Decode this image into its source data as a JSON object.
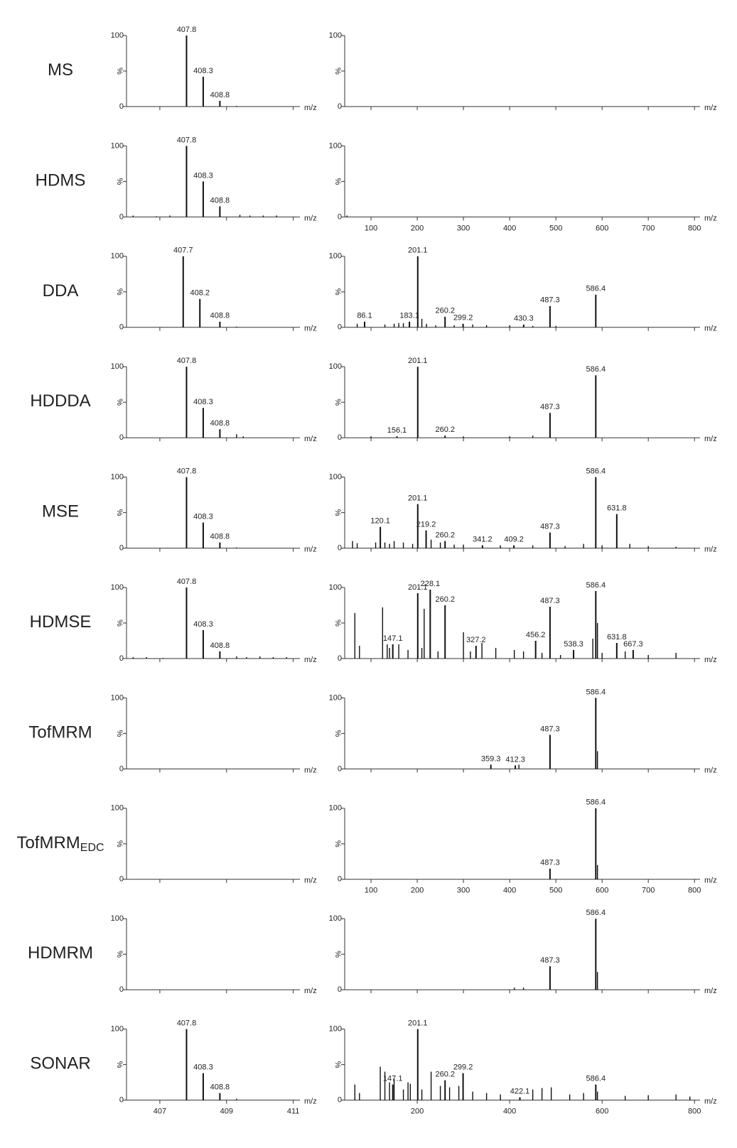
{
  "chart_data": [
    {
      "type": "stick",
      "title": "MS",
      "xlabel": "m/z",
      "color": "#111111",
      "xlim": [
        406,
        411.2
      ],
      "ylim": [
        0,
        100
      ],
      "xticks": [
        407,
        409,
        411
      ],
      "yticks": [
        0,
        {
          "value": 50,
          "label": "%"
        },
        100
      ],
      "xtick_labels": false,
      "x": [
        407.8,
        408.3,
        408.8
      ],
      "values": [
        100,
        42,
        8
      ],
      "minor_x": [
        409.3
      ],
      "minor_values": [
        1
      ]
    },
    {
      "type": "stick",
      "xlabel": "m/z",
      "color": "#111111",
      "xlim": [
        43,
        812
      ],
      "ylim": [
        0,
        100
      ],
      "xticks": [
        100,
        200,
        300,
        400,
        500,
        600,
        700,
        800
      ],
      "yticks": [
        0,
        {
          "value": 50,
          "label": "%"
        },
        100
      ],
      "xtick_labels": false,
      "x": [],
      "values": [],
      "minor_x": [],
      "minor_values": []
    },
    {
      "type": "stick",
      "title": "HDMS",
      "xlabel": "m/z",
      "color": "#111111",
      "xlim": [
        406,
        411.2
      ],
      "ylim": [
        0,
        100
      ],
      "xticks": [
        407,
        409,
        411
      ],
      "yticks": [
        0,
        {
          "value": 50,
          "label": "%"
        },
        100
      ],
      "xtick_labels": false,
      "x": [
        407.8,
        408.3,
        408.8
      ],
      "values": [
        100,
        50,
        15
      ],
      "minor_x": [
        406.2,
        406.9,
        407.3,
        409.4,
        409.7,
        410.1,
        410.5
      ],
      "minor_values": [
        2,
        1,
        2,
        3,
        2,
        2,
        2
      ]
    },
    {
      "type": "stick",
      "xlabel": "m/z",
      "color": "#111111",
      "xlim": [
        43,
        812
      ],
      "ylim": [
        0,
        100
      ],
      "xticks": [
        100,
        200,
        300,
        400,
        500,
        600,
        700,
        800
      ],
      "yticks": [
        0,
        {
          "value": 50,
          "label": "%"
        },
        100
      ],
      "xtick_labels": true,
      "x": [],
      "values": [],
      "minor_x": [
        48
      ],
      "minor_values": [
        2
      ]
    },
    {
      "type": "stick",
      "title": "DDA",
      "xlabel": "m/z",
      "color": "#111111",
      "xlim": [
        406,
        411.2
      ],
      "ylim": [
        0,
        100
      ],
      "xticks": [
        407,
        409,
        411
      ],
      "yticks": [
        0,
        {
          "value": 50,
          "label": "%"
        },
        100
      ],
      "xtick_labels": false,
      "x": [
        407.7,
        408.2,
        408.8
      ],
      "values": [
        100,
        40,
        8
      ],
      "minor_x": [
        409.3
      ],
      "minor_values": [
        1
      ]
    },
    {
      "type": "stick",
      "xlabel": "m/z",
      "color": "#111111",
      "xlim": [
        43,
        812
      ],
      "ylim": [
        0,
        100
      ],
      "xticks": [
        100,
        200,
        300,
        400,
        500,
        600,
        700,
        800
      ],
      "yticks": [
        0,
        {
          "value": 50,
          "label": "%"
        },
        100
      ],
      "xtick_labels": false,
      "x": [
        86.1,
        183.1,
        201.1,
        260.2,
        299.2,
        430.3,
        487.3,
        586.4
      ],
      "values": [
        8,
        8,
        100,
        15,
        5,
        4,
        30,
        46
      ],
      "minor_x": [
        70,
        130,
        150,
        160,
        170,
        210,
        220,
        240,
        280,
        320,
        350,
        400,
        450,
        500
      ],
      "minor_values": [
        5,
        4,
        5,
        6,
        6,
        12,
        5,
        3,
        3,
        4,
        3,
        3,
        2,
        2
      ]
    },
    {
      "type": "stick",
      "title": "HDDDA",
      "xlabel": "m/z",
      "color": "#111111",
      "xlim": [
        406,
        411.2
      ],
      "ylim": [
        0,
        100
      ],
      "xticks": [
        407,
        409,
        411
      ],
      "yticks": [
        0,
        {
          "value": 50,
          "label": "%"
        },
        100
      ],
      "xtick_labels": false,
      "x": [
        407.8,
        408.3,
        408.8
      ],
      "values": [
        100,
        42,
        12
      ],
      "minor_x": [
        409.3,
        409.5
      ],
      "minor_values": [
        5,
        2
      ]
    },
    {
      "type": "stick",
      "xlabel": "m/z",
      "color": "#111111",
      "xlim": [
        43,
        812
      ],
      "ylim": [
        0,
        100
      ],
      "xticks": [
        100,
        200,
        300,
        400,
        500,
        600,
        700,
        800
      ],
      "yticks": [
        0,
        {
          "value": 50,
          "label": "%"
        },
        100
      ],
      "xtick_labels": false,
      "x": [
        156.1,
        201.1,
        260.2,
        487.3,
        586.4
      ],
      "values": [
        2,
        100,
        3,
        35,
        88
      ],
      "minor_x": [
        100,
        300,
        400,
        450
      ],
      "minor_values": [
        2,
        2,
        2,
        3
      ]
    },
    {
      "type": "stick",
      "title": "MSE",
      "xlabel": "m/z",
      "color": "#111111",
      "xlim": [
        406,
        411.2
      ],
      "ylim": [
        0,
        100
      ],
      "xticks": [
        407,
        409,
        411
      ],
      "yticks": [
        0,
        {
          "value": 50,
          "label": "%"
        },
        100
      ],
      "xtick_labels": false,
      "x": [
        407.8,
        408.3,
        408.8
      ],
      "values": [
        100,
        36,
        8
      ],
      "minor_x": [
        409.3
      ],
      "minor_values": [
        1
      ]
    },
    {
      "type": "stick",
      "xlabel": "m/z",
      "color": "#111111",
      "xlim": [
        43,
        812
      ],
      "ylim": [
        0,
        100
      ],
      "xticks": [
        100,
        200,
        300,
        400,
        500,
        600,
        700,
        800
      ],
      "yticks": [
        0,
        {
          "value": 50,
          "label": "%"
        },
        100
      ],
      "xtick_labels": false,
      "x": [
        120.1,
        201.1,
        219.2,
        260.2,
        341.2,
        409.2,
        487.3,
        586.4,
        631.8
      ],
      "values": [
        30,
        62,
        25,
        10,
        4,
        4,
        22,
        100,
        48
      ],
      "minor_x": [
        60,
        70,
        110,
        130,
        140,
        150,
        170,
        190,
        230,
        250,
        280,
        300,
        380,
        450,
        520,
        560,
        600,
        660,
        700,
        760
      ],
      "minor_values": [
        10,
        7,
        8,
        8,
        6,
        10,
        8,
        6,
        12,
        8,
        5,
        5,
        4,
        4,
        3,
        6,
        4,
        6,
        3,
        2
      ]
    },
    {
      "type": "stick",
      "title": "HDMSE",
      "xlabel": "m/z",
      "color": "#111111",
      "xlim": [
        406,
        411.2
      ],
      "ylim": [
        0,
        100
      ],
      "xticks": [
        407,
        409,
        411
      ],
      "yticks": [
        0,
        {
          "value": 50,
          "label": "%"
        },
        100
      ],
      "xtick_labels": false,
      "x": [
        407.8,
        408.3,
        408.8
      ],
      "values": [
        100,
        40,
        10
      ],
      "minor_x": [
        406.2,
        406.6,
        407.1,
        409.3,
        409.6,
        410.0,
        410.4,
        410.8
      ],
      "minor_values": [
        2,
        2,
        1,
        3,
        2,
        3,
        2,
        2
      ]
    },
    {
      "type": "stick",
      "xlabel": "m/z",
      "color": "#111111",
      "xlim": [
        43,
        812
      ],
      "ylim": [
        0,
        100
      ],
      "xticks": [
        100,
        200,
        300,
        400,
        500,
        600,
        700,
        800
      ],
      "yticks": [
        0,
        {
          "value": 50,
          "label": "%"
        },
        100
      ],
      "xtick_labels": false,
      "x": [
        147.1,
        201.1,
        228.1,
        260.2,
        327.2,
        456.2,
        487.3,
        538.3,
        586.4,
        631.8,
        667.3
      ],
      "values": [
        20,
        92,
        97,
        75,
        18,
        25,
        73,
        12,
        95,
        22,
        12
      ],
      "minor_x": [
        65,
        75,
        125,
        135,
        140,
        160,
        180,
        210,
        215,
        245,
        300,
        315,
        340,
        370,
        410,
        430,
        470,
        510,
        580,
        590,
        600,
        650,
        700,
        760
      ],
      "minor_values": [
        64,
        18,
        72,
        20,
        15,
        20,
        12,
        15,
        70,
        10,
        37,
        10,
        22,
        15,
        12,
        10,
        8,
        5,
        28,
        50,
        8,
        10,
        5,
        8
      ]
    },
    {
      "type": "stick",
      "title": "TofMRM",
      "xlabel": "m/z",
      "color": "#111111",
      "xlim": [
        406,
        411.2
      ],
      "ylim": [
        0,
        100
      ],
      "xticks": [
        407,
        409,
        411
      ],
      "yticks": [
        0,
        {
          "value": 50,
          "label": "%"
        },
        100
      ],
      "xtick_labels": false,
      "x": [],
      "values": [],
      "minor_x": [],
      "minor_values": []
    },
    {
      "type": "stick",
      "xlabel": "m/z",
      "color": "#111111",
      "xlim": [
        43,
        812
      ],
      "ylim": [
        0,
        100
      ],
      "xticks": [
        100,
        200,
        300,
        400,
        500,
        600,
        700,
        800
      ],
      "yticks": [
        0,
        {
          "value": 50,
          "label": "%"
        },
        100
      ],
      "xtick_labels": false,
      "x": [
        359.3,
        412.3,
        487.3,
        586.4
      ],
      "values": [
        6,
        5,
        48,
        100
      ],
      "minor_x": [
        420,
        590
      ],
      "minor_values": [
        6,
        25
      ]
    },
    {
      "type": "stick",
      "title": "TofMRM",
      "title_subscript": "EDC",
      "xlabel": "m/z",
      "color": "#111111",
      "xlim": [
        406,
        411.2
      ],
      "ylim": [
        0,
        100
      ],
      "xticks": [
        407,
        409,
        411
      ],
      "yticks": [
        0,
        {
          "value": 50,
          "label": "%"
        },
        100
      ],
      "xtick_labels": false,
      "x": [],
      "values": [],
      "minor_x": [],
      "minor_values": []
    },
    {
      "type": "stick",
      "xlabel": "m/z",
      "color": "#111111",
      "xlim": [
        43,
        812
      ],
      "ylim": [
        0,
        100
      ],
      "xticks": [
        100,
        200,
        300,
        400,
        500,
        600,
        700,
        800
      ],
      "yticks": [
        0,
        {
          "value": 50,
          "label": "%"
        },
        100
      ],
      "xtick_labels": true,
      "x": [
        487.3,
        586.4
      ],
      "values": [
        15,
        100
      ],
      "minor_x": [
        590
      ],
      "minor_values": [
        20
      ]
    },
    {
      "type": "stick",
      "title": "HDMRM",
      "xlabel": "m/z",
      "color": "#111111",
      "xlim": [
        406,
        411.2
      ],
      "ylim": [
        0,
        100
      ],
      "xticks": [
        407,
        409,
        411
      ],
      "yticks": [
        0,
        {
          "value": 50,
          "label": "%"
        },
        100
      ],
      "xtick_labels": false,
      "x": [],
      "values": [],
      "minor_x": [],
      "minor_values": []
    },
    {
      "type": "stick",
      "xlabel": "m/z",
      "color": "#111111",
      "xlim": [
        43,
        812
      ],
      "ylim": [
        0,
        100
      ],
      "xticks": [
        100,
        200,
        300,
        400,
        500,
        600,
        700,
        800
      ],
      "yticks": [
        0,
        {
          "value": 50,
          "label": "%"
        },
        100
      ],
      "xtick_labels": false,
      "x": [
        487.3,
        586.4
      ],
      "values": [
        33,
        100
      ],
      "minor_x": [
        410,
        430,
        590
      ],
      "minor_values": [
        3,
        3,
        25
      ]
    },
    {
      "type": "stick",
      "title": "SONAR",
      "xlabel": "m/z",
      "color": "#111111",
      "xlim": [
        406,
        411.2
      ],
      "ylim": [
        0,
        100
      ],
      "xticks": [
        407,
        409,
        411
      ],
      "yticks": [
        0,
        {
          "value": 50,
          "label": "%"
        },
        100
      ],
      "xtick_labels": true,
      "x": [
        407.8,
        408.3,
        408.8
      ],
      "values": [
        100,
        38,
        10
      ],
      "minor_x": [
        409.3
      ],
      "minor_values": [
        2
      ]
    },
    {
      "type": "stick",
      "xlabel": "m/z",
      "color": "#111111",
      "xlim": [
        43,
        812
      ],
      "ylim": [
        0,
        100
      ],
      "xticks": [
        200,
        400,
        600,
        800
      ],
      "yticks": [
        0,
        {
          "value": 50,
          "label": "%"
        },
        100
      ],
      "xtick_labels": true,
      "x": [
        147.1,
        201.1,
        260.2,
        299.2,
        422.1,
        586.4
      ],
      "values": [
        22,
        100,
        28,
        38,
        4,
        22
      ],
      "minor_x": [
        65,
        75,
        120,
        130,
        140,
        150,
        170,
        180,
        185,
        210,
        230,
        250,
        270,
        290,
        320,
        350,
        380,
        450,
        470,
        490,
        530,
        560,
        590,
        650,
        700,
        760,
        790
      ],
      "minor_values": [
        22,
        10,
        47,
        40,
        25,
        30,
        15,
        25,
        23,
        15,
        40,
        20,
        18,
        20,
        12,
        10,
        8,
        15,
        17,
        18,
        8,
        10,
        12,
        6,
        7,
        8,
        5
      ]
    }
  ]
}
